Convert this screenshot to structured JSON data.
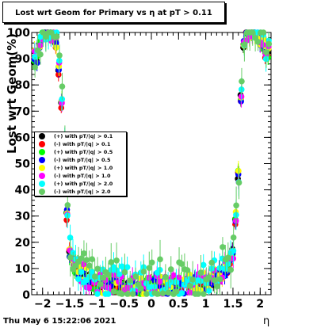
{
  "chart_data": {
    "type": "scatter",
    "title": "Lost wrt Geom for Primary vs   η at pT > 0.11",
    "xlabel": "η",
    "ylabel": "Lost wrt Geom(%)",
    "xlim": [
      -2.2,
      2.2
    ],
    "ylim": [
      0,
      100
    ],
    "x_ticks": [
      -2,
      -1.5,
      -1,
      -0.5,
      0,
      0.5,
      1,
      1.5,
      2
    ],
    "x_tick_labels": [
      "−2",
      "−1.5",
      "−1",
      "−0.5",
      "0",
      "0.5",
      "1",
      "1.5",
      "2"
    ],
    "y_ticks": [
      0,
      10,
      20,
      30,
      40,
      50,
      60,
      70,
      80,
      90,
      100
    ],
    "y_tick_labels": [
      "0",
      "10",
      "20",
      "30",
      "40",
      "50",
      "60",
      "70",
      "80",
      "90",
      "100"
    ],
    "grid": false,
    "legend_position": "left-middle",
    "series": [
      {
        "name": "(+) with pT/|q| > 0.1",
        "color": "#000000",
        "offset": 0.0,
        "noise": 1.0
      },
      {
        "name": "(-) with pT/|q| > 0.1",
        "color": "#ff0000",
        "offset": 0.0,
        "noise": 1.2
      },
      {
        "name": "(+) with pT/|q| > 0.5",
        "color": "#00ff00",
        "offset": 0.3,
        "noise": 1.5
      },
      {
        "name": "(-) with pT/|q| > 0.5",
        "color": "#0000ff",
        "offset": 0.2,
        "noise": 1.5
      },
      {
        "name": "(+) with pT/|q| > 1.0",
        "color": "#ffff00",
        "offset": 0.8,
        "noise": 2.0
      },
      {
        "name": "(-) with pT/|q| > 1.0",
        "color": "#ff00ff",
        "offset": 0.8,
        "noise": 2.0
      },
      {
        "name": "(+) with pT/|q| > 2.0",
        "color": "#00ffff",
        "offset": 1.8,
        "noise": 3.0
      },
      {
        "name": "(-) with pT/|q| > 2.0",
        "color": "#66cc66",
        "offset": 2.5,
        "noise": 4.0
      }
    ],
    "profile_x": [
      -2.1,
      -2.05,
      -2.0,
      -1.95,
      -1.9,
      -1.85,
      -1.8,
      -1.75,
      -1.7,
      -1.65,
      -1.6,
      -1.55,
      -1.5,
      -1.45,
      -1.4,
      -1.3,
      -1.2,
      -1.0,
      -0.5,
      0.0,
      0.5,
      1.0,
      1.2,
      1.3,
      1.4,
      1.45,
      1.5,
      1.55,
      1.6,
      1.65,
      1.7,
      1.75,
      1.8,
      1.85,
      1.9,
      1.95,
      2.0,
      2.05,
      2.1
    ],
    "profile_y": [
      90,
      95,
      99,
      100,
      100,
      99,
      98,
      95,
      85,
      72,
      55,
      30,
      16,
      12,
      10,
      8,
      6,
      4,
      3,
      3,
      3,
      4,
      6,
      8,
      10,
      12,
      16,
      28,
      45,
      75,
      95,
      99,
      100,
      100,
      100,
      99,
      97,
      95,
      92
    ]
  },
  "footer": {
    "timestamp": "Thu May  6 15:22:06 2021"
  }
}
